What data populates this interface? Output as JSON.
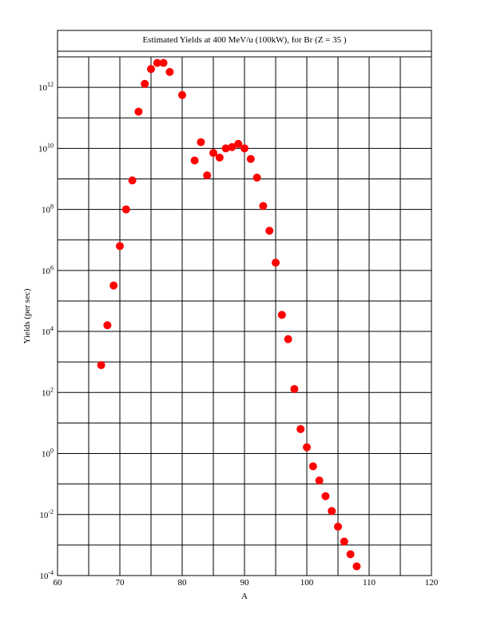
{
  "chart_data": {
    "type": "scatter",
    "title": "Estimated Yields at 400 MeV/u (100kW), for Br (Z = 35 )",
    "xlabel": "A",
    "ylabel": "Yields (per sec)",
    "xlim": [
      60,
      120
    ],
    "ylim_log10": [
      -4,
      13
    ],
    "y_scale": "log",
    "grid": true,
    "marker_color": "#ff0000",
    "x_ticks": [
      "60",
      "70",
      "80",
      "90",
      "100",
      "110",
      "120"
    ],
    "y_tick_base": "10",
    "y_tick_exponents": [
      "12",
      "10",
      "8",
      "6",
      "4",
      "2",
      "0",
      "-2",
      "-4"
    ],
    "series": [
      {
        "x": [
          67,
          68,
          69,
          70,
          71,
          72,
          73,
          74,
          75,
          76,
          77,
          78,
          80,
          82,
          83,
          84,
          85,
          86,
          87,
          88,
          89,
          90,
          91,
          92,
          93,
          94,
          95,
          96,
          97,
          98,
          99,
          100,
          101,
          102,
          103,
          104,
          105,
          106,
          107,
          108
        ],
        "y": [
          790.0,
          16000.0,
          320000.0,
          6300000.0,
          100000000.0,
          890000000.0,
          160000000000.0,
          1300000000000.0,
          4000000000000.0,
          6300000000000.0,
          6300000000000.0,
          3200000000000.0,
          560000000000.0,
          4000000000.0,
          16000000000.0,
          1300000000.0,
          7100000000.0,
          5000000000.0,
          10000000000.0,
          11000000000.0,
          14000000000.0,
          10000000000.0,
          4500000000.0,
          1100000000.0,
          130000000.0,
          20000000.0,
          1800000.0,
          35000.0,
          5600.0,
          130.0,
          6.3,
          1.6,
          0.38,
          0.13,
          0.04,
          0.013,
          0.004,
          0.0013,
          0.0005,
          0.0002
        ]
      }
    ]
  }
}
